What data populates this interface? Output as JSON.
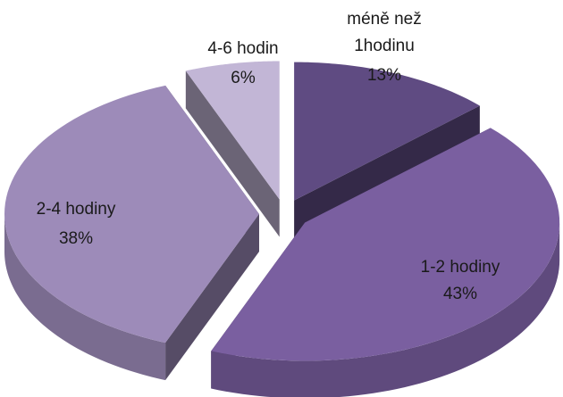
{
  "chart_data": {
    "type": "pie",
    "categories": [
      "méně než 1hodinu",
      "1-2 hodiny",
      "2-4 hodiny",
      "4-6 hodin"
    ],
    "values": [
      13,
      43,
      38,
      6
    ],
    "value_labels": [
      "13%",
      "43%",
      "38%",
      "6%"
    ],
    "colors": [
      "#5f4b82",
      "#7a5fa0",
      "#9d8bb9",
      "#c2b6d6"
    ]
  }
}
